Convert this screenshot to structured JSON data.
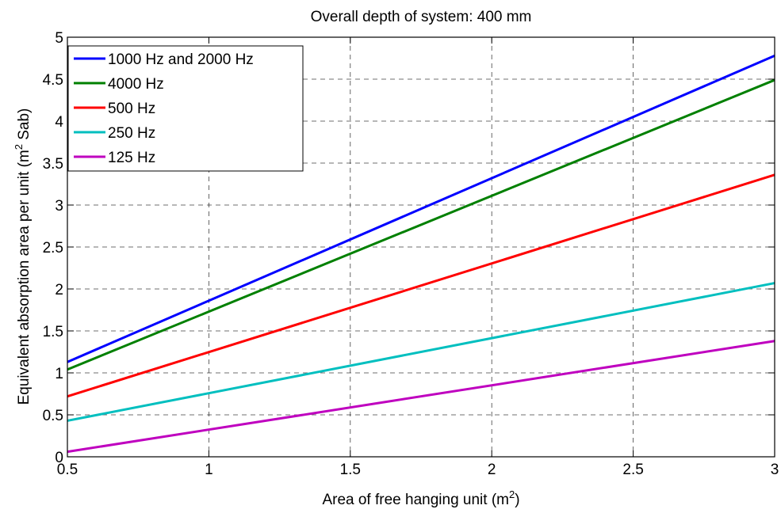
{
  "chart_data": {
    "type": "line",
    "title": "Overall depth of system: 400 mm",
    "xlabel": "Area of free hanging unit (m",
    "xlabel_sup": "2",
    "xlabel_end": ")",
    "ylabel": "Equivalent absorption area per unit  (m",
    "ylabel_sup": "2",
    "ylabel_end": " Sab)",
    "xlim": [
      0.5,
      3
    ],
    "ylim": [
      0,
      5
    ],
    "x_ticks": [
      0.5,
      1,
      1.5,
      2,
      2.5,
      3
    ],
    "x_tick_labels": [
      "0.5",
      "1",
      "1.5",
      "2",
      "2.5",
      "3"
    ],
    "y_ticks": [
      0,
      0.5,
      1,
      1.5,
      2,
      2.5,
      3,
      3.5,
      4,
      4.5,
      5
    ],
    "y_tick_labels": [
      "0",
      "0.5",
      "1",
      "1.5",
      "2",
      "2.5",
      "3",
      "3.5",
      "4",
      "4.5",
      "5"
    ],
    "grid": true,
    "legend_position": "top-left",
    "series": [
      {
        "name": "1000 Hz and 2000 Hz",
        "color": "#0000ff",
        "x": [
          0.5,
          3
        ],
        "y": [
          1.13,
          4.78
        ]
      },
      {
        "name": "4000 Hz",
        "color": "#008000",
        "x": [
          0.5,
          3
        ],
        "y": [
          1.04,
          4.49
        ]
      },
      {
        "name": "500 Hz",
        "color": "#ff0000",
        "x": [
          0.5,
          3
        ],
        "y": [
          0.72,
          3.36
        ]
      },
      {
        "name": "250 Hz",
        "color": "#00bfbf",
        "x": [
          0.5,
          3
        ],
        "y": [
          0.43,
          2.07
        ]
      },
      {
        "name": "125 Hz",
        "color": "#bf00bf",
        "x": [
          0.5,
          3
        ],
        "y": [
          0.06,
          1.38
        ]
      }
    ]
  }
}
